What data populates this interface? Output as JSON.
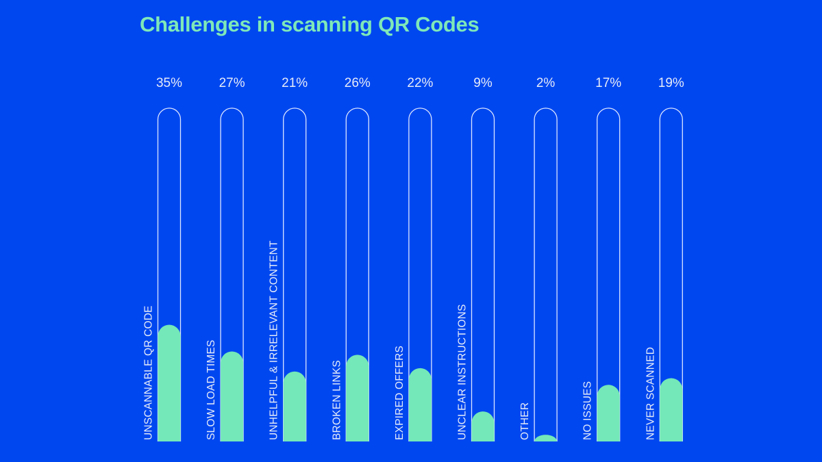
{
  "chart_data": {
    "type": "bar",
    "title": "Challenges in scanning QR Codes",
    "categories": [
      "UNSCANNABLE QR CODE",
      "SLOW LOAD TIMES",
      "UNHELPFUL & IRRELEVANT CONTENT",
      "BROKEN LINKS",
      "EXPIRED OFFERS",
      "UNCLEAR INSTRUCTIONS",
      "OTHER",
      "NO ISSUES",
      "NEVER SCANNED"
    ],
    "values": [
      35,
      27,
      21,
      26,
      22,
      9,
      2,
      17,
      19
    ],
    "value_labels": [
      "35%",
      "27%",
      "21%",
      "26%",
      "22%",
      "9%",
      "2%",
      "17%",
      "19%"
    ],
    "ylim": [
      0,
      100
    ],
    "grid": false,
    "legend": "none",
    "colors": {
      "background": "#0047F0",
      "bar_fill": "#74E8B8",
      "outline": "#DDE6FF",
      "title": "#7FE8B8",
      "text": "#E6EBF8"
    }
  }
}
